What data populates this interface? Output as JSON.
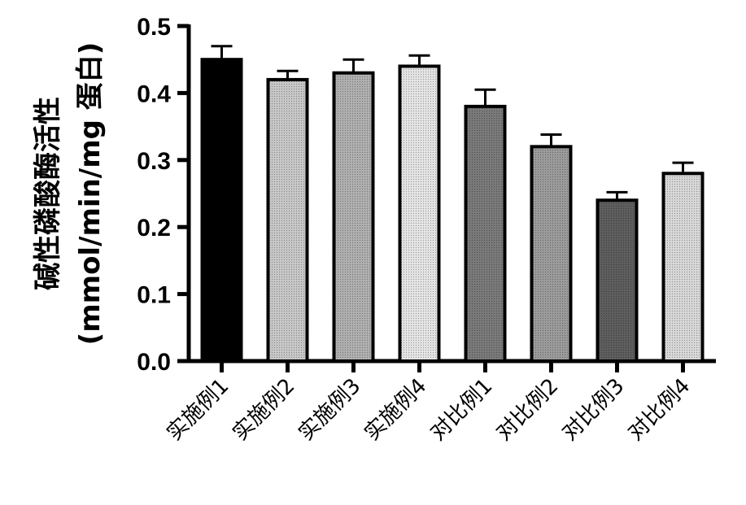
{
  "chart_data": {
    "type": "bar",
    "ylabel_lines": [
      "碱性磷酸酶活性",
      "(mmol/min/mg 蛋白)"
    ],
    "ylim": [
      0.0,
      0.5
    ],
    "yticks": [
      "0.0",
      "0.1",
      "0.2",
      "0.3",
      "0.4",
      "0.5"
    ],
    "categories": [
      "实施例1",
      "实施例2",
      "实施例3",
      "实施例4",
      "对比例1",
      "对比例2",
      "对比例3",
      "对比例4"
    ],
    "values": [
      0.45,
      0.42,
      0.43,
      0.44,
      0.38,
      0.32,
      0.24,
      0.28
    ],
    "errors": [
      0.02,
      0.013,
      0.02,
      0.016,
      0.025,
      0.018,
      0.012,
      0.016
    ],
    "bar_colors": [
      "#000000",
      "#c8c8c8",
      "#b0b0b0",
      "#e4e4e4",
      "#7a7a7a",
      "#9c9c9c",
      "#5e5e5e",
      "#d8d8d8"
    ],
    "grid": false
  }
}
